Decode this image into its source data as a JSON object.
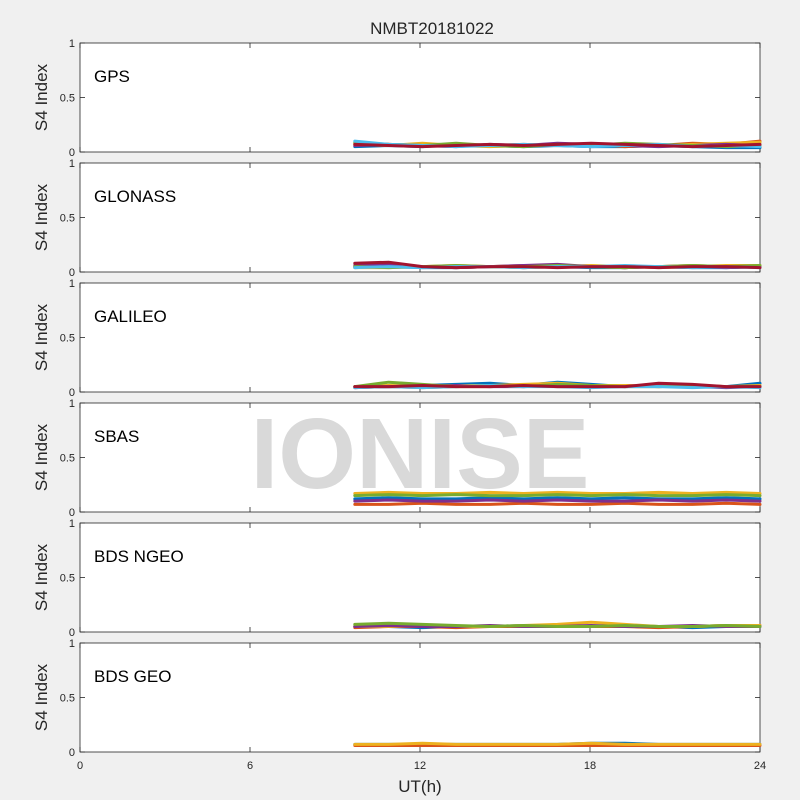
{
  "chart_data": {
    "type": "scatter",
    "title": "NMBT20181022",
    "xlabel": "UT(h)",
    "ylabel": "S4 Index",
    "xlim": [
      0,
      24
    ],
    "ylim": [
      0,
      1
    ],
    "x_ticks": [
      "0",
      "6",
      "12",
      "18",
      "24"
    ],
    "y_ticks": [
      "0",
      "0.5",
      "1"
    ],
    "watermark": "IONISE",
    "series_colors": [
      "#0072bd",
      "#d95319",
      "#edb120",
      "#7e2f8e",
      "#77ac30",
      "#4dbeee",
      "#a2142f"
    ],
    "panels": [
      {
        "label": "GPS",
        "data_start_h": 9.7,
        "series": [
          {
            "values": [
              0.05,
              0.06,
              0.05,
              0.07,
              0.06,
              0.05,
              0.06,
              0.05,
              0.05,
              0.06,
              0.05,
              0.04,
              0.04
            ]
          },
          {
            "values": [
              0.08,
              0.07,
              0.06,
              0.07,
              0.06,
              0.07,
              0.06,
              0.07,
              0.05,
              0.06,
              0.08,
              0.07,
              0.1
            ]
          },
          {
            "values": [
              0.07,
              0.06,
              0.08,
              0.06,
              0.05,
              0.06,
              0.07,
              0.06,
              0.07,
              0.06,
              0.07,
              0.08,
              0.09
            ]
          },
          {
            "values": [
              0.06,
              0.07,
              0.06,
              0.05,
              0.07,
              0.06,
              0.08,
              0.07,
              0.06,
              0.05,
              0.06,
              0.07,
              0.06
            ]
          },
          {
            "values": [
              0.09,
              0.07,
              0.06,
              0.08,
              0.06,
              0.05,
              0.07,
              0.06,
              0.08,
              0.07,
              0.06,
              0.05,
              0.06
            ]
          },
          {
            "values": [
              0.1,
              0.07,
              0.06,
              0.05,
              0.06,
              0.07,
              0.06,
              0.05,
              0.06,
              0.07,
              0.05,
              0.06,
              0.05
            ]
          },
          {
            "values": [
              0.07,
              0.06,
              0.05,
              0.06,
              0.07,
              0.06,
              0.07,
              0.08,
              0.07,
              0.06,
              0.05,
              0.06,
              0.07
            ]
          }
        ]
      },
      {
        "label": "GLONASS",
        "data_start_h": 9.7,
        "series": [
          {
            "values": [
              0.04,
              0.05,
              0.04,
              0.04,
              0.05,
              0.04,
              0.05,
              0.04,
              0.04,
              0.05,
              0.04,
              0.04,
              0.05
            ]
          },
          {
            "values": [
              0.05,
              0.06,
              0.05,
              0.04,
              0.05,
              0.06,
              0.05,
              0.05,
              0.04,
              0.05,
              0.06,
              0.05,
              0.05
            ]
          },
          {
            "values": [
              0.04,
              0.04,
              0.05,
              0.06,
              0.05,
              0.04,
              0.05,
              0.06,
              0.05,
              0.04,
              0.05,
              0.06,
              0.06
            ]
          },
          {
            "values": [
              0.06,
              0.07,
              0.05,
              0.04,
              0.05,
              0.06,
              0.07,
              0.05,
              0.04,
              0.05,
              0.05,
              0.04,
              0.05
            ]
          },
          {
            "values": [
              0.05,
              0.04,
              0.05,
              0.06,
              0.05,
              0.05,
              0.06,
              0.05,
              0.04,
              0.05,
              0.06,
              0.05,
              0.06
            ]
          },
          {
            "values": [
              0.04,
              0.05,
              0.04,
              0.05,
              0.05,
              0.04,
              0.05,
              0.05,
              0.06,
              0.05,
              0.04,
              0.05,
              0.04
            ]
          },
          {
            "values": [
              0.08,
              0.09,
              0.05,
              0.04,
              0.05,
              0.05,
              0.04,
              0.05,
              0.05,
              0.04,
              0.05,
              0.05,
              0.04
            ]
          }
        ]
      },
      {
        "label": "GALILEO",
        "data_start_h": 9.7,
        "series": [
          {
            "values": [
              0.05,
              0.05,
              0.06,
              0.07,
              0.08,
              0.06,
              0.09,
              0.07,
              0.05,
              0.06,
              0.05,
              0.05,
              0.08
            ]
          },
          {
            "values": [
              0.04,
              0.05,
              0.04,
              0.05,
              0.05,
              0.06,
              0.05,
              0.05,
              0.06,
              0.05,
              0.06,
              0.05,
              0.05
            ]
          },
          {
            "values": [
              0.05,
              0.06,
              0.05,
              0.06,
              0.06,
              0.07,
              0.08,
              0.06,
              0.06,
              0.05,
              0.06,
              0.05,
              0.06
            ]
          },
          {
            "values": [
              0.04,
              0.05,
              0.05,
              0.06,
              0.05,
              0.05,
              0.06,
              0.05,
              0.05,
              0.06,
              0.05,
              0.04,
              0.05
            ]
          },
          {
            "values": [
              0.05,
              0.09,
              0.07,
              0.05,
              0.06,
              0.05,
              0.07,
              0.06,
              0.05,
              0.05,
              0.06,
              0.05,
              0.05
            ]
          },
          {
            "values": [
              0.04,
              0.05,
              0.04,
              0.05,
              0.06,
              0.05,
              0.05,
              0.04,
              0.05,
              0.05,
              0.04,
              0.05,
              0.04
            ]
          },
          {
            "values": [
              0.05,
              0.05,
              0.06,
              0.05,
              0.05,
              0.06,
              0.05,
              0.05,
              0.05,
              0.08,
              0.07,
              0.05,
              0.05
            ]
          }
        ]
      },
      {
        "label": "SBAS",
        "data_start_h": 9.7,
        "series": [
          {
            "values": [
              0.12,
              0.13,
              0.12,
              0.12,
              0.13,
              0.12,
              0.13,
              0.12,
              0.13,
              0.12,
              0.12,
              0.13,
              0.12
            ]
          },
          {
            "values": [
              0.07,
              0.07,
              0.08,
              0.07,
              0.07,
              0.08,
              0.07,
              0.07,
              0.08,
              0.07,
              0.07,
              0.08,
              0.07
            ]
          },
          {
            "values": [
              0.17,
              0.18,
              0.17,
              0.17,
              0.18,
              0.17,
              0.18,
              0.17,
              0.17,
              0.18,
              0.17,
              0.18,
              0.17
            ]
          },
          {
            "values": [
              0.1,
              0.11,
              0.1,
              0.1,
              0.11,
              0.1,
              0.11,
              0.1,
              0.1,
              0.11,
              0.1,
              0.11,
              0.1
            ]
          },
          {
            "values": [
              0.15,
              0.16,
              0.15,
              0.16,
              0.15,
              0.15,
              0.16,
              0.15,
              0.16,
              0.15,
              0.15,
              0.16,
              0.15
            ]
          }
        ]
      },
      {
        "label": "BDS NGEO",
        "data_start_h": 9.7,
        "series": [
          {
            "values": [
              0.05,
              0.05,
              0.04,
              0.05,
              0.05,
              0.06,
              0.05,
              0.05,
              0.06,
              0.05,
              0.04,
              0.05,
              0.05
            ]
          },
          {
            "values": [
              0.04,
              0.05,
              0.05,
              0.04,
              0.05,
              0.05,
              0.06,
              0.05,
              0.05,
              0.04,
              0.05,
              0.06,
              0.06
            ]
          },
          {
            "values": [
              0.05,
              0.05,
              0.06,
              0.05,
              0.05,
              0.06,
              0.07,
              0.09,
              0.07,
              0.05,
              0.05,
              0.06,
              0.06
            ]
          },
          {
            "values": [
              0.05,
              0.06,
              0.05,
              0.05,
              0.06,
              0.05,
              0.05,
              0.06,
              0.05,
              0.05,
              0.06,
              0.05,
              0.05
            ]
          },
          {
            "values": [
              0.07,
              0.08,
              0.07,
              0.06,
              0.05,
              0.06,
              0.05,
              0.05,
              0.06,
              0.05,
              0.05,
              0.06,
              0.05
            ]
          }
        ]
      },
      {
        "label": "BDS GEO",
        "data_start_h": 9.7,
        "series": [
          {
            "values": [
              0.07,
              0.07,
              0.07,
              0.07,
              0.07,
              0.07,
              0.07,
              0.08,
              0.08,
              0.07,
              0.07,
              0.07,
              0.07
            ]
          },
          {
            "values": [
              0.06,
              0.06,
              0.06,
              0.06,
              0.06,
              0.06,
              0.06,
              0.06,
              0.06,
              0.06,
              0.06,
              0.06,
              0.06
            ]
          },
          {
            "values": [
              0.07,
              0.07,
              0.08,
              0.07,
              0.07,
              0.07,
              0.07,
              0.08,
              0.07,
              0.07,
              0.07,
              0.07,
              0.07
            ]
          }
        ]
      }
    ]
  }
}
